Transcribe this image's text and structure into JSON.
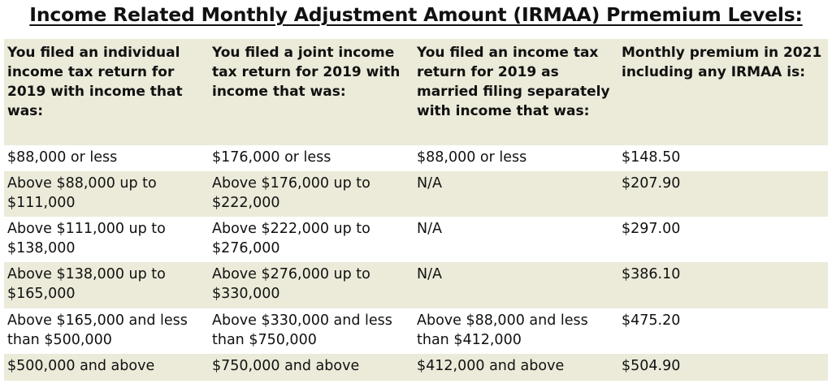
{
  "title": "Income Related Monthly Adjustment Amount (IRMAA) Prmemium Levels:",
  "headers": [
    "You filed an individual income tax return for 2019 with income that was:",
    "You filed a joint income tax return for 2019 with income that was:",
    "You filed an income tax return for 2019 as married filing separately with income that was:",
    "Monthly premium in 2021 including any IRMAA is:"
  ],
  "rows": [
    [
      "$88,000 or less",
      "$176,000 or less",
      "$88,000 or less",
      "$148.50"
    ],
    [
      "Above $88,000 up to $111,000",
      "Above $176,000 up to $222,000",
      "N/A",
      "$207.90"
    ],
    [
      "Above $111,000 up to $138,000",
      "Above $222,000 up to $276,000",
      "N/A",
      "$297.00"
    ],
    [
      "Above $138,000 up to $165,000",
      "Above $276,000 up to $330,000",
      "N/A",
      "$386.10"
    ],
    [
      "Above $165,000 and less than $500,000",
      "Above $330,000 and less than $750,000",
      "Above $88,000 and less than $412,000",
      "$475.20"
    ],
    [
      "$500,000 and above",
      "$750,000 and above",
      "$412,000 and above",
      "$504.90"
    ]
  ],
  "colors": {
    "shade": "#ecead9",
    "plain": "#ffffff",
    "text": "#111111"
  }
}
